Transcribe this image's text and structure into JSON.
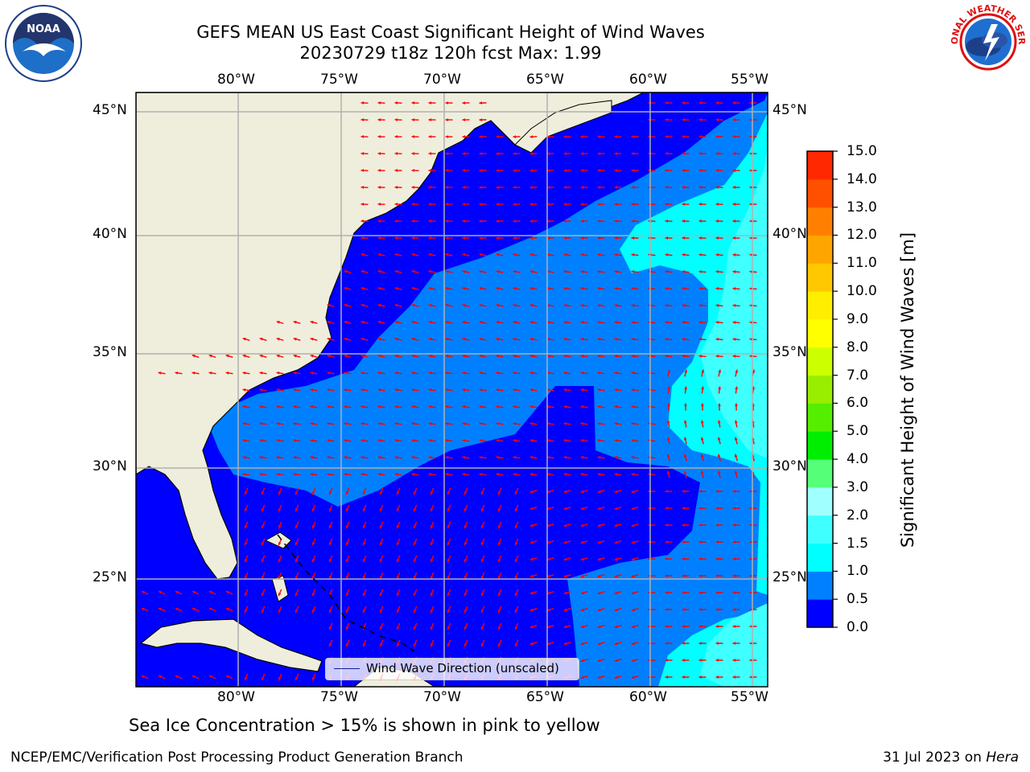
{
  "header": {
    "title_line1": "GEFS MEAN US East Coast Significant Height of Wind Waves",
    "title_line2": "20230729 t18z 120h fcst   Max: 1.99"
  },
  "logos": {
    "left": "noaa-logo",
    "right": "nws-logo",
    "left_text": "NOAA",
    "right_text": "NATIONAL WEATHER SERVICE"
  },
  "map": {
    "lon_labels": [
      "80°W",
      "75°W",
      "70°W",
      "65°W",
      "60°W",
      "55°W"
    ],
    "lat_labels": [
      "45°N",
      "40°N",
      "35°N",
      "30°N",
      "25°N"
    ],
    "extent": {
      "lon": [
        -85,
        -54.5
      ],
      "lat": [
        20,
        46
      ]
    },
    "grid": true,
    "land_color": "#efeedc",
    "arrow_color": "#ff0000",
    "legend_text": "Wind Wave Direction (unscaled)",
    "legend_position": "bottom-center"
  },
  "colorbar": {
    "label": "Significant Height of Wind Waves [m]",
    "ticks": [
      "0.0",
      "0.5",
      "1.0",
      "1.5",
      "2.0",
      "3.0",
      "4.0",
      "5.0",
      "6.0",
      "7.0",
      "8.0",
      "9.0",
      "10.0",
      "11.0",
      "12.0",
      "13.0",
      "14.0",
      "15.0"
    ],
    "colors": [
      "#0000ff",
      "#0080ff",
      "#00ffff",
      "#40ffff",
      "#a0ffff",
      "#55ff77",
      "#00ee00",
      "#55ee00",
      "#99ee00",
      "#ccff00",
      "#ffff00",
      "#ffee00",
      "#ffc800",
      "#ffa500",
      "#ff8000",
      "#ff5000",
      "#ff2800"
    ]
  },
  "caption": "Sea Ice Concentration > 15% is shown in pink to yellow",
  "footer": {
    "left": "NCEP/EMC/Verification Post Processing Product Generation Branch",
    "right_prefix": "31 Jul 2023 on ",
    "right_italic": "Hera"
  }
}
